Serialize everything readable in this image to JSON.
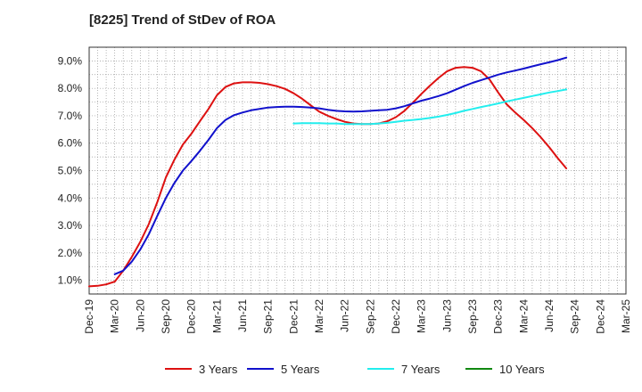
{
  "chart_data": {
    "type": "line",
    "title": "[8225]  Trend of StDev of ROA",
    "xlabel": "",
    "ylabel": "",
    "ylim": [
      0.5,
      9.5
    ],
    "y_ticks": [
      1.0,
      2.0,
      3.0,
      4.0,
      5.0,
      6.0,
      7.0,
      8.0,
      9.0
    ],
    "y_tick_labels": [
      "1.0%",
      "2.0%",
      "3.0%",
      "4.0%",
      "5.0%",
      "6.0%",
      "7.0%",
      "8.0%",
      "9.0%"
    ],
    "x_ticks": [
      "Dec-19",
      "Mar-20",
      "Jun-20",
      "Sep-20",
      "Dec-20",
      "Mar-21",
      "Jun-21",
      "Sep-21",
      "Dec-21",
      "Mar-22",
      "Jun-22",
      "Sep-22",
      "Dec-22",
      "Mar-23",
      "Jun-23",
      "Sep-23",
      "Dec-23",
      "Mar-24",
      "Jun-24",
      "Sep-24",
      "Dec-24",
      "Mar-25"
    ],
    "grid": true,
    "legend_position": "bottom",
    "series": [
      {
        "name": "3 Years",
        "color": "#dd1111",
        "points": [
          [
            "Dec-19",
            0.78
          ],
          [
            "Jan-20",
            0.8
          ],
          [
            "Feb-20",
            0.85
          ],
          [
            "Mar-20",
            0.95
          ],
          [
            "Apr-20",
            1.35
          ],
          [
            "May-20",
            1.85
          ],
          [
            "Jun-20",
            2.4
          ],
          [
            "Jul-20",
            3.05
          ],
          [
            "Aug-20",
            3.85
          ],
          [
            "Sep-20",
            4.75
          ],
          [
            "Oct-20",
            5.4
          ],
          [
            "Nov-20",
            5.95
          ],
          [
            "Dec-20",
            6.35
          ],
          [
            "Jan-21",
            6.8
          ],
          [
            "Feb-21",
            7.25
          ],
          [
            "Mar-21",
            7.75
          ],
          [
            "Apr-21",
            8.05
          ],
          [
            "May-21",
            8.18
          ],
          [
            "Jun-21",
            8.22
          ],
          [
            "Jul-21",
            8.22
          ],
          [
            "Aug-21",
            8.2
          ],
          [
            "Sep-21",
            8.15
          ],
          [
            "Oct-21",
            8.08
          ],
          [
            "Nov-21",
            7.98
          ],
          [
            "Dec-21",
            7.82
          ],
          [
            "Jan-22",
            7.62
          ],
          [
            "Feb-22",
            7.38
          ],
          [
            "Mar-22",
            7.15
          ],
          [
            "Apr-22",
            7.0
          ],
          [
            "May-22",
            6.88
          ],
          [
            "Jun-22",
            6.78
          ],
          [
            "Jul-22",
            6.72
          ],
          [
            "Aug-22",
            6.7
          ],
          [
            "Sep-22",
            6.7
          ],
          [
            "Oct-22",
            6.72
          ],
          [
            "Nov-22",
            6.8
          ],
          [
            "Dec-22",
            6.95
          ],
          [
            "Jan-23",
            7.18
          ],
          [
            "Feb-23",
            7.48
          ],
          [
            "Mar-23",
            7.8
          ],
          [
            "Apr-23",
            8.1
          ],
          [
            "May-23",
            8.38
          ],
          [
            "Jun-23",
            8.62
          ],
          [
            "Jul-23",
            8.75
          ],
          [
            "Aug-23",
            8.78
          ],
          [
            "Sep-23",
            8.75
          ],
          [
            "Oct-23",
            8.62
          ],
          [
            "Nov-23",
            8.32
          ],
          [
            "Dec-23",
            7.85
          ],
          [
            "Jan-24",
            7.42
          ],
          [
            "Feb-24",
            7.12
          ],
          [
            "Mar-24",
            6.85
          ],
          [
            "Apr-24",
            6.55
          ],
          [
            "May-24",
            6.22
          ],
          [
            "Jun-24",
            5.85
          ],
          [
            "Jul-24",
            5.45
          ],
          [
            "Aug-24",
            5.08
          ]
        ]
      },
      {
        "name": "5 Years",
        "color": "#1111cc",
        "points": [
          [
            "Mar-20",
            1.22
          ],
          [
            "Apr-20",
            1.35
          ],
          [
            "May-20",
            1.68
          ],
          [
            "Jun-20",
            2.12
          ],
          [
            "Jul-20",
            2.68
          ],
          [
            "Aug-20",
            3.35
          ],
          [
            "Sep-20",
            4.0
          ],
          [
            "Oct-20",
            4.55
          ],
          [
            "Nov-20",
            5.0
          ],
          [
            "Dec-20",
            5.35
          ],
          [
            "Jan-21",
            5.72
          ],
          [
            "Feb-21",
            6.12
          ],
          [
            "Mar-21",
            6.55
          ],
          [
            "Apr-21",
            6.85
          ],
          [
            "May-21",
            7.02
          ],
          [
            "Jun-21",
            7.12
          ],
          [
            "Jul-21",
            7.2
          ],
          [
            "Aug-21",
            7.25
          ],
          [
            "Sep-21",
            7.3
          ],
          [
            "Oct-21",
            7.32
          ],
          [
            "Nov-21",
            7.33
          ],
          [
            "Dec-21",
            7.33
          ],
          [
            "Jan-22",
            7.32
          ],
          [
            "Feb-22",
            7.3
          ],
          [
            "Mar-22",
            7.27
          ],
          [
            "Apr-22",
            7.22
          ],
          [
            "May-22",
            7.18
          ],
          [
            "Jun-22",
            7.16
          ],
          [
            "Jul-22",
            7.15
          ],
          [
            "Aug-22",
            7.16
          ],
          [
            "Sep-22",
            7.18
          ],
          [
            "Oct-22",
            7.2
          ],
          [
            "Nov-22",
            7.22
          ],
          [
            "Dec-22",
            7.27
          ],
          [
            "Jan-23",
            7.35
          ],
          [
            "Feb-23",
            7.45
          ],
          [
            "Mar-23",
            7.55
          ],
          [
            "Apr-23",
            7.63
          ],
          [
            "May-23",
            7.72
          ],
          [
            "Jun-23",
            7.82
          ],
          [
            "Jul-23",
            7.95
          ],
          [
            "Aug-23",
            8.08
          ],
          [
            "Sep-23",
            8.2
          ],
          [
            "Oct-23",
            8.3
          ],
          [
            "Nov-23",
            8.4
          ],
          [
            "Dec-23",
            8.5
          ],
          [
            "Jan-24",
            8.58
          ],
          [
            "Feb-24",
            8.65
          ],
          [
            "Mar-24",
            8.72
          ],
          [
            "Apr-24",
            8.8
          ],
          [
            "May-24",
            8.88
          ],
          [
            "Jun-24",
            8.95
          ],
          [
            "Jul-24",
            9.03
          ],
          [
            "Aug-24",
            9.12
          ]
        ]
      },
      {
        "name": "7 Years",
        "color": "#22eeee",
        "points": [
          [
            "Dec-21",
            6.72
          ],
          [
            "Jan-22",
            6.73
          ],
          [
            "Feb-22",
            6.73
          ],
          [
            "Mar-22",
            6.73
          ],
          [
            "Apr-22",
            6.72
          ],
          [
            "May-22",
            6.72
          ],
          [
            "Jun-22",
            6.7
          ],
          [
            "Jul-22",
            6.7
          ],
          [
            "Aug-22",
            6.7
          ],
          [
            "Sep-22",
            6.7
          ],
          [
            "Oct-22",
            6.72
          ],
          [
            "Nov-22",
            6.74
          ],
          [
            "Dec-22",
            6.78
          ],
          [
            "Jan-23",
            6.82
          ],
          [
            "Feb-23",
            6.85
          ],
          [
            "Mar-23",
            6.88
          ],
          [
            "Apr-23",
            6.92
          ],
          [
            "May-23",
            6.97
          ],
          [
            "Jun-23",
            7.03
          ],
          [
            "Jul-23",
            7.1
          ],
          [
            "Aug-23",
            7.18
          ],
          [
            "Sep-23",
            7.25
          ],
          [
            "Oct-23",
            7.32
          ],
          [
            "Nov-23",
            7.38
          ],
          [
            "Dec-23",
            7.45
          ],
          [
            "Jan-24",
            7.52
          ],
          [
            "Feb-24",
            7.59
          ],
          [
            "Mar-24",
            7.65
          ],
          [
            "Apr-24",
            7.72
          ],
          [
            "May-24",
            7.78
          ],
          [
            "Jun-24",
            7.85
          ],
          [
            "Jul-24",
            7.9
          ],
          [
            "Aug-24",
            7.96
          ]
        ]
      },
      {
        "name": "10 Years",
        "color": "#118811",
        "points": []
      }
    ]
  }
}
